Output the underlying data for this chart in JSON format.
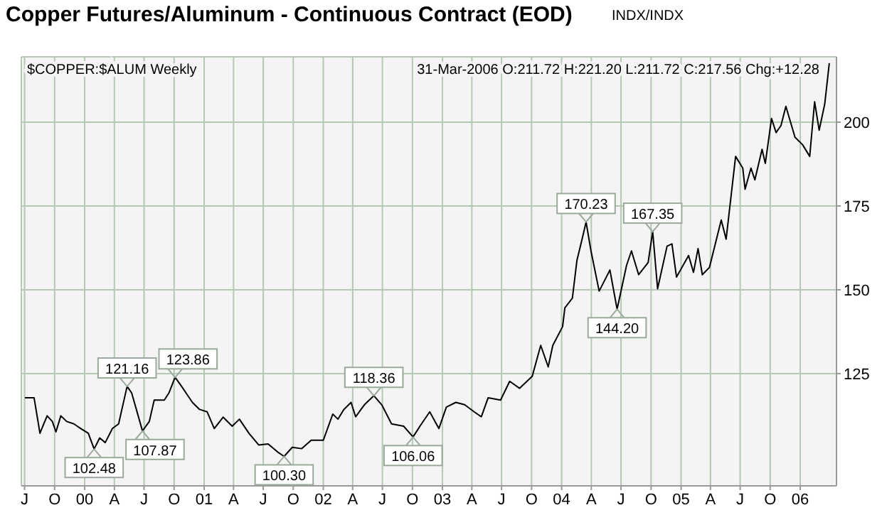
{
  "chart_data": {
    "type": "line",
    "title": "Copper Futures/Aluminum - Continuous Contract (EOD)",
    "subtitle": "$COPPER:$ALUM Weekly",
    "annotations": [
      "INDX/INDX",
      "31-Mar-2006 O:211.72 H:221.20 L:211.72 C:217.56 Chg:+12.28",
      {
        "text": "121.16",
        "x": "2000-05-10",
        "y": 121.16
      },
      {
        "text": "123.86",
        "x": "2000-10-04",
        "y": 123.86
      },
      {
        "text": "102.48",
        "x": "2000-01-30",
        "y": 102.48
      },
      {
        "text": "107.87",
        "x": "2000-06-26",
        "y": 107.87
      },
      {
        "text": "100.30",
        "x": "2001-09-03",
        "y": 100.3
      },
      {
        "text": "118.36",
        "x": "2002-06-05",
        "y": 118.36
      },
      {
        "text": "106.06",
        "x": "2002-10-03",
        "y": 106.06
      },
      {
        "text": "170.23",
        "x": "2004-03-16",
        "y": 170.23
      },
      {
        "text": "144.20",
        "x": "2004-06-19",
        "y": 144.2
      },
      {
        "text": "167.35",
        "x": "2004-10-06",
        "y": 167.35
      }
    ],
    "x": [
      "1999-07-02",
      "1999-07-30",
      "1999-08-17",
      "1999-09-08",
      "1999-09-24",
      "1999-10-05",
      "1999-10-20",
      "1999-11-07",
      "1999-11-29",
      "1999-12-20",
      "2000-01-12",
      "2000-01-30",
      "2000-02-16",
      "2000-03-04",
      "2000-03-26",
      "2000-04-14",
      "2000-05-10",
      "2000-05-24",
      "2000-06-26",
      "2000-07-17",
      "2000-08-01",
      "2000-09-01",
      "2000-09-15",
      "2000-10-04",
      "2000-10-28",
      "2000-11-26",
      "2000-12-18",
      "2001-01-10",
      "2001-02-01",
      "2001-02-28",
      "2001-03-28",
      "2001-04-19",
      "2001-05-18",
      "2001-06-17",
      "2001-07-16",
      "2001-08-14",
      "2001-09-03",
      "2001-09-28",
      "2001-10-27",
      "2001-11-25",
      "2002-01-01",
      "2002-01-30",
      "2002-02-15",
      "2002-03-05",
      "2002-03-27",
      "2002-04-10",
      "2002-05-07",
      "2002-06-05",
      "2002-06-29",
      "2002-07-29",
      "2002-09-04",
      "2002-10-03",
      "2002-10-24",
      "2002-11-23",
      "2002-12-21",
      "2003-01-13",
      "2003-02-11",
      "2003-03-10",
      "2003-04-08",
      "2003-04-30",
      "2003-05-21",
      "2003-06-28",
      "2003-07-26",
      "2003-08-25",
      "2003-10-03",
      "2003-10-29",
      "2003-11-21",
      "2003-12-05",
      "2004-01-04",
      "2004-01-11",
      "2004-02-03",
      "2004-02-17",
      "2004-03-02",
      "2004-03-16",
      "2004-03-31",
      "2004-04-25",
      "2004-05-28",
      "2004-06-19",
      "2004-07-18",
      "2004-08-02",
      "2004-08-24",
      "2004-09-22",
      "2004-10-06",
      "2004-10-21",
      "2004-11-19",
      "2004-12-04",
      "2004-12-18",
      "2005-01-24",
      "2005-02-08",
      "2005-02-22",
      "2005-03-07",
      "2005-03-29",
      "2005-05-04",
      "2005-05-19",
      "2005-06-17",
      "2005-07-09",
      "2005-07-16",
      "2005-08-03",
      "2005-08-15",
      "2005-09-06",
      "2005-09-16",
      "2005-10-05",
      "2005-10-19",
      "2005-11-03",
      "2005-11-18",
      "2005-12-16",
      "2006-01-08",
      "2006-01-30",
      "2006-02-14",
      "2006-02-28",
      "2006-03-17",
      "2006-03-31"
    ],
    "series": [
      {
        "color": "#000000",
        "values": [
          117.8,
          117.8,
          107.2,
          112.4,
          110.7,
          107.6,
          112.4,
          110.7,
          110.0,
          108.6,
          107.2,
          102.5,
          105.8,
          104.4,
          108.6,
          110.0,
          121.2,
          119.2,
          107.9,
          110.7,
          117.1,
          117.1,
          119.2,
          123.9,
          120.6,
          116.4,
          114.3,
          113.6,
          108.6,
          112.0,
          109.3,
          111.4,
          107.2,
          103.7,
          104.0,
          101.6,
          100.3,
          103.0,
          102.6,
          105.1,
          105.1,
          112.9,
          111.4,
          114.3,
          116.4,
          112.1,
          115.7,
          118.4,
          115.7,
          110.0,
          109.3,
          106.1,
          109.3,
          113.6,
          108.6,
          115.0,
          116.4,
          115.7,
          113.6,
          112.1,
          117.8,
          117.1,
          122.7,
          120.6,
          124.2,
          133.4,
          127.0,
          133.4,
          139.0,
          144.6,
          147.5,
          158.8,
          164.4,
          170.2,
          161.6,
          149.6,
          155.9,
          144.2,
          157.3,
          161.6,
          154.5,
          158.1,
          167.4,
          150.3,
          163.0,
          163.7,
          153.8,
          160.2,
          155.2,
          162.3,
          154.5,
          156.7,
          170.8,
          165.1,
          189.8,
          186.3,
          180.0,
          186.3,
          182.8,
          191.9,
          187.7,
          201.1,
          196.9,
          199.0,
          204.7,
          195.5,
          193.3,
          189.8,
          206.1,
          197.6,
          205.4,
          217.6
        ]
      }
    ],
    "xlim": [
      "1999-06-21",
      "2006-04-22"
    ],
    "xticks": [
      {
        "value": "1999-07-01",
        "label": "J"
      },
      {
        "value": "1999-10-01",
        "label": "O"
      },
      {
        "value": "2000-01-01",
        "label": "00"
      },
      {
        "value": "2000-04-01",
        "label": "A"
      },
      {
        "value": "2000-07-01",
        "label": "J"
      },
      {
        "value": "2000-10-01",
        "label": "O"
      },
      {
        "value": "2001-01-01",
        "label": "01"
      },
      {
        "value": "2001-04-01",
        "label": "A"
      },
      {
        "value": "2001-07-01",
        "label": "J"
      },
      {
        "value": "2001-10-01",
        "label": "O"
      },
      {
        "value": "2002-01-01",
        "label": "02"
      },
      {
        "value": "2002-04-01",
        "label": "A"
      },
      {
        "value": "2002-07-01",
        "label": "J"
      },
      {
        "value": "2002-10-01",
        "label": "O"
      },
      {
        "value": "2003-01-01",
        "label": "03"
      },
      {
        "value": "2003-04-01",
        "label": "A"
      },
      {
        "value": "2003-07-01",
        "label": "J"
      },
      {
        "value": "2003-10-01",
        "label": "O"
      },
      {
        "value": "2004-01-01",
        "label": "04"
      },
      {
        "value": "2004-04-01",
        "label": "A"
      },
      {
        "value": "2004-07-01",
        "label": "J"
      },
      {
        "value": "2004-10-01",
        "label": "O"
      },
      {
        "value": "2005-01-01",
        "label": "05"
      },
      {
        "value": "2005-04-01",
        "label": "A"
      },
      {
        "value": "2005-07-01",
        "label": "J"
      },
      {
        "value": "2005-10-01",
        "label": "O"
      },
      {
        "value": "2006-01-01",
        "label": "06"
      }
    ],
    "ylim": [
      91.5,
      219.5
    ],
    "yticks": [
      125,
      150,
      175,
      200
    ],
    "grid": true,
    "marker": "none",
    "line_style": "solid",
    "legend": false
  }
}
